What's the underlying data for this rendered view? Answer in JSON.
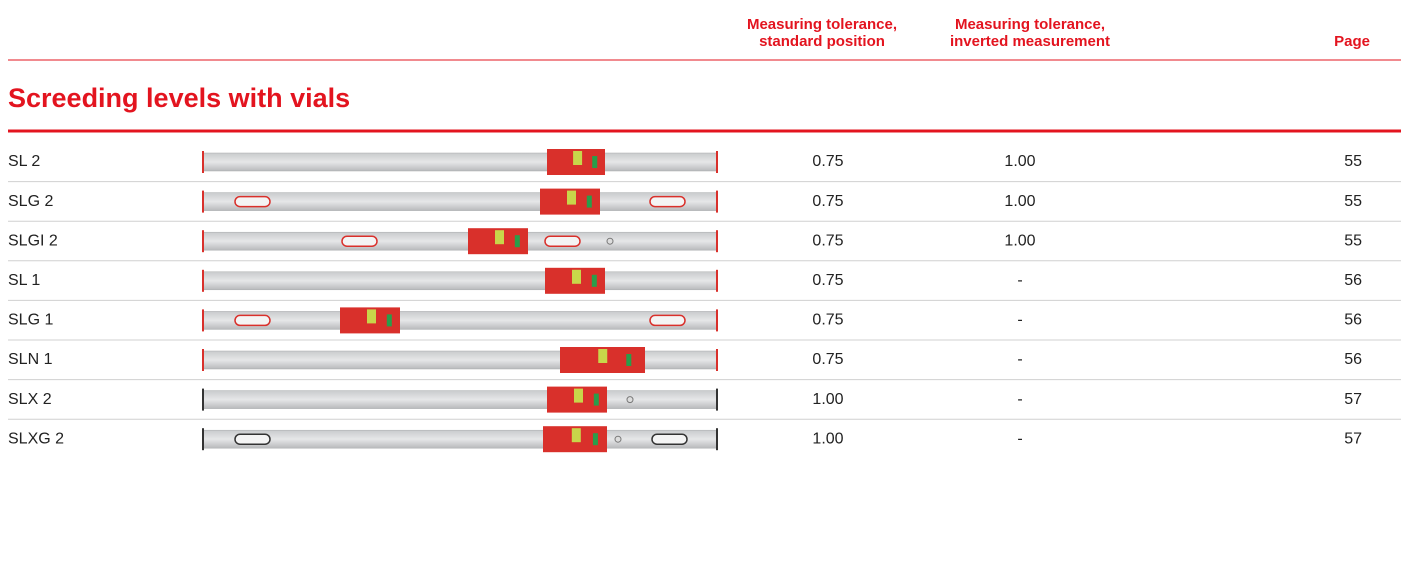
{
  "header": {
    "columns": [
      {
        "lines": [
          "Measuring tolerance,",
          "standard position"
        ]
      },
      {
        "lines": [
          "Measuring tolerance,",
          "inverted measurement"
        ]
      },
      {
        "lines": [
          "Page"
        ]
      }
    ]
  },
  "section": {
    "title": "Screeding levels with vials"
  },
  "table": {
    "rows": [
      [
        "SL 2",
        "0.75",
        "1.00",
        "55"
      ],
      [
        "SLG 2",
        "0.75",
        "1.00",
        "55"
      ],
      [
        "SLGI 2",
        "0.75",
        "1.00",
        "55"
      ],
      [
        "SL 1",
        "0.75",
        "-",
        "56"
      ],
      [
        "SLG 1",
        "0.75",
        "-",
        "56"
      ],
      [
        "SLN 1",
        "0.75",
        "-",
        "56"
      ],
      [
        "SLX 2",
        "1.00",
        "-",
        "57"
      ],
      [
        "SLXG 2",
        "1.00",
        "-",
        "57"
      ]
    ]
  }
}
